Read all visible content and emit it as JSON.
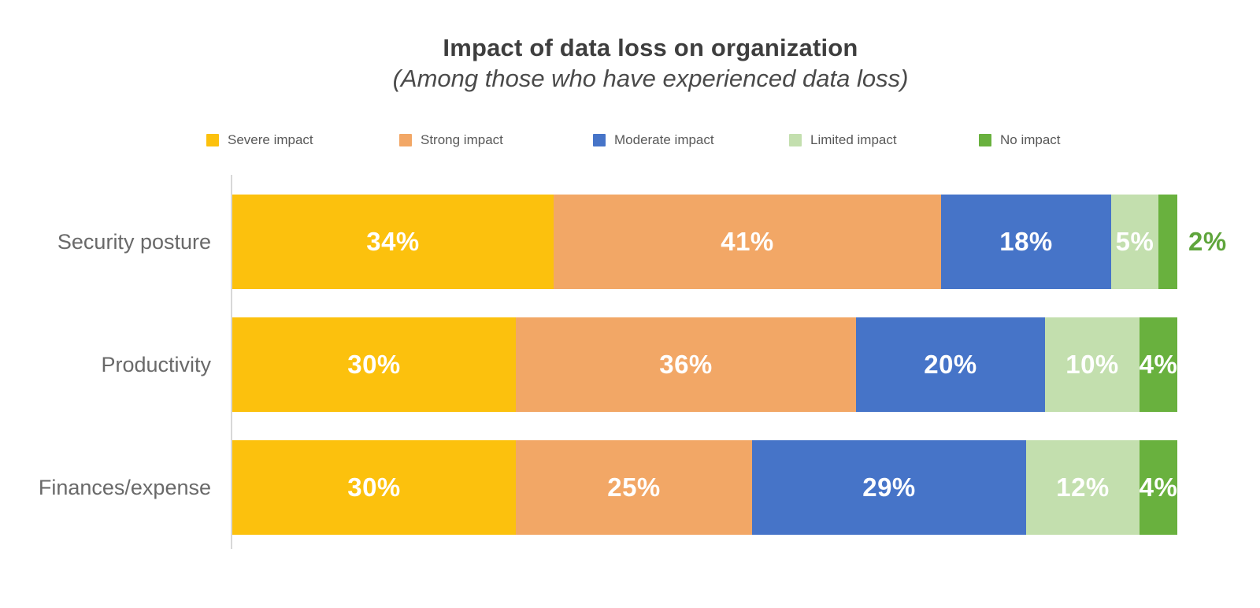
{
  "header": {
    "title": "Impact of data loss on organization",
    "subtitle": "(Among those who have experienced data loss)"
  },
  "colors": {
    "background": "#ffffff",
    "title_text": "#3e3e3e",
    "subtitle_text": "#4a4a4a",
    "legend_text": "#595959",
    "category_text": "#696969",
    "bar_value_text": "#ffffff",
    "outside_value_text": "#5fa53c",
    "axis_line": "#d8d8d8"
  },
  "chart_data": {
    "type": "bar",
    "stacked": true,
    "orientation": "horizontal",
    "title": "Impact of data loss on organization",
    "subtitle": "(Among those who have experienced data loss)",
    "categories": [
      "Security posture",
      "Productivity",
      "Finances/expense"
    ],
    "series": [
      {
        "name": "Severe impact",
        "color": "#fcc10d",
        "values": [
          34,
          30,
          30
        ]
      },
      {
        "name": "Strong impact",
        "color": "#f2a766",
        "values": [
          41,
          36,
          25
        ]
      },
      {
        "name": "Moderate impact",
        "color": "#4674c8",
        "values": [
          18,
          20,
          29
        ]
      },
      {
        "name": "Limited impact",
        "color": "#c3dfae",
        "values": [
          5,
          10,
          12
        ]
      },
      {
        "name": "No impact",
        "color": "#69b13e",
        "values": [
          2,
          4,
          4
        ]
      }
    ],
    "value_suffix": "%",
    "xlim": [
      0,
      100
    ],
    "grid": false,
    "legend_position": "top",
    "value_label_style": "inside white bold; values of 2% or less drawn outside bar end in green",
    "outside_label_color": "#5fa53c",
    "outside_label_threshold": 2
  }
}
